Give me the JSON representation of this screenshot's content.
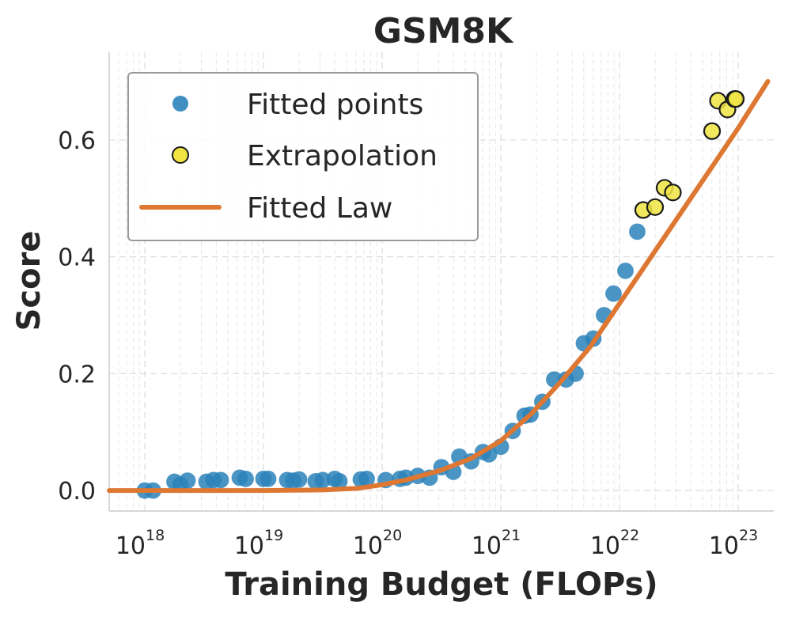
{
  "chart_data": {
    "type": "scatter",
    "title": "GSM8K",
    "xlabel": "Training Budget (FLOPs)",
    "ylabel": "Score",
    "x_scale": "log",
    "xlim_log10": [
      17.7,
      23.3
    ],
    "ylim": [
      -0.035,
      0.75
    ],
    "x_ticks": [
      {
        "base": "10",
        "exp": "18",
        "log10": 18
      },
      {
        "base": "10",
        "exp": "19",
        "log10": 19
      },
      {
        "base": "10",
        "exp": "20",
        "log10": 20
      },
      {
        "base": "10",
        "exp": "21",
        "log10": 21
      },
      {
        "base": "10",
        "exp": "22",
        "log10": 22
      },
      {
        "base": "10",
        "exp": "23",
        "log10": 23
      }
    ],
    "y_ticks": [
      {
        "label": "0.0",
        "value": 0.0
      },
      {
        "label": "0.2",
        "value": 0.2
      },
      {
        "label": "0.4",
        "value": 0.4
      },
      {
        "label": "0.6",
        "value": 0.6
      }
    ],
    "grid": true,
    "legend_position": "top-left",
    "colors": {
      "fitted_points": "#2b83ba",
      "extrapolation_fill": "#f0e442",
      "extrapolation_edge": "#1a1a1a",
      "fitted_law": "#dd7732",
      "grid": "#dddddd",
      "axis": "#cccccc",
      "text": "#262626"
    },
    "series": [
      {
        "name": "Fitted points",
        "kind": "scatter",
        "points": [
          {
            "log10x": 18.0,
            "y": 0.0
          },
          {
            "log10x": 18.07,
            "y": 0.0
          },
          {
            "log10x": 18.25,
            "y": 0.015
          },
          {
            "log10x": 18.3,
            "y": 0.01
          },
          {
            "log10x": 18.36,
            "y": 0.017
          },
          {
            "log10x": 18.52,
            "y": 0.015
          },
          {
            "log10x": 18.58,
            "y": 0.018
          },
          {
            "log10x": 18.64,
            "y": 0.018
          },
          {
            "log10x": 18.8,
            "y": 0.022
          },
          {
            "log10x": 18.85,
            "y": 0.02
          },
          {
            "log10x": 19.0,
            "y": 0.02
          },
          {
            "log10x": 19.04,
            "y": 0.02
          },
          {
            "log10x": 19.2,
            "y": 0.018
          },
          {
            "log10x": 19.25,
            "y": 0.017
          },
          {
            "log10x": 19.3,
            "y": 0.019
          },
          {
            "log10x": 19.44,
            "y": 0.016
          },
          {
            "log10x": 19.5,
            "y": 0.018
          },
          {
            "log10x": 19.6,
            "y": 0.02
          },
          {
            "log10x": 19.64,
            "y": 0.016
          },
          {
            "log10x": 19.82,
            "y": 0.019
          },
          {
            "log10x": 19.87,
            "y": 0.02
          },
          {
            "log10x": 20.03,
            "y": 0.018
          },
          {
            "log10x": 20.15,
            "y": 0.02
          },
          {
            "log10x": 20.2,
            "y": 0.022
          },
          {
            "log10x": 20.3,
            "y": 0.025
          },
          {
            "log10x": 20.4,
            "y": 0.022
          },
          {
            "log10x": 20.5,
            "y": 0.04
          },
          {
            "log10x": 20.6,
            "y": 0.032
          },
          {
            "log10x": 20.65,
            "y": 0.058
          },
          {
            "log10x": 20.75,
            "y": 0.05
          },
          {
            "log10x": 20.85,
            "y": 0.066
          },
          {
            "log10x": 20.9,
            "y": 0.062
          },
          {
            "log10x": 21.0,
            "y": 0.075
          },
          {
            "log10x": 21.1,
            "y": 0.102
          },
          {
            "log10x": 21.2,
            "y": 0.128
          },
          {
            "log10x": 21.25,
            "y": 0.13
          },
          {
            "log10x": 21.35,
            "y": 0.152
          },
          {
            "log10x": 21.45,
            "y": 0.19
          },
          {
            "log10x": 21.55,
            "y": 0.19
          },
          {
            "log10x": 21.63,
            "y": 0.2
          },
          {
            "log10x": 21.7,
            "y": 0.252
          },
          {
            "log10x": 21.78,
            "y": 0.26
          },
          {
            "log10x": 21.87,
            "y": 0.3
          },
          {
            "log10x": 21.95,
            "y": 0.337
          },
          {
            "log10x": 22.05,
            "y": 0.376
          },
          {
            "log10x": 22.15,
            "y": 0.443
          }
        ]
      },
      {
        "name": "Extrapolation",
        "kind": "scatter",
        "points": [
          {
            "log10x": 22.2,
            "y": 0.48
          },
          {
            "log10x": 22.3,
            "y": 0.485
          },
          {
            "log10x": 22.38,
            "y": 0.518
          },
          {
            "log10x": 22.45,
            "y": 0.51
          },
          {
            "log10x": 22.78,
            "y": 0.615
          },
          {
            "log10x": 22.83,
            "y": 0.667
          },
          {
            "log10x": 22.91,
            "y": 0.652
          },
          {
            "log10x": 22.97,
            "y": 0.67
          },
          {
            "log10x": 22.98,
            "y": 0.67
          }
        ]
      },
      {
        "name": "Fitted Law",
        "kind": "line",
        "points": [
          {
            "log10x": 17.7,
            "y": 0.0
          },
          {
            "log10x": 18.5,
            "y": 0.0
          },
          {
            "log10x": 19.0,
            "y": 0.0
          },
          {
            "log10x": 19.5,
            "y": 0.001
          },
          {
            "log10x": 19.8,
            "y": 0.004
          },
          {
            "log10x": 20.0,
            "y": 0.01
          },
          {
            "log10x": 20.2,
            "y": 0.018
          },
          {
            "log10x": 20.5,
            "y": 0.035
          },
          {
            "log10x": 20.75,
            "y": 0.055
          },
          {
            "log10x": 21.0,
            "y": 0.085
          },
          {
            "log10x": 21.25,
            "y": 0.13
          },
          {
            "log10x": 21.5,
            "y": 0.185
          },
          {
            "log10x": 21.75,
            "y": 0.245
          },
          {
            "log10x": 22.0,
            "y": 0.32
          },
          {
            "log10x": 22.25,
            "y": 0.395
          },
          {
            "log10x": 22.5,
            "y": 0.47
          },
          {
            "log10x": 22.75,
            "y": 0.545
          },
          {
            "log10x": 23.0,
            "y": 0.62
          },
          {
            "log10x": 23.25,
            "y": 0.7
          }
        ]
      }
    ]
  }
}
